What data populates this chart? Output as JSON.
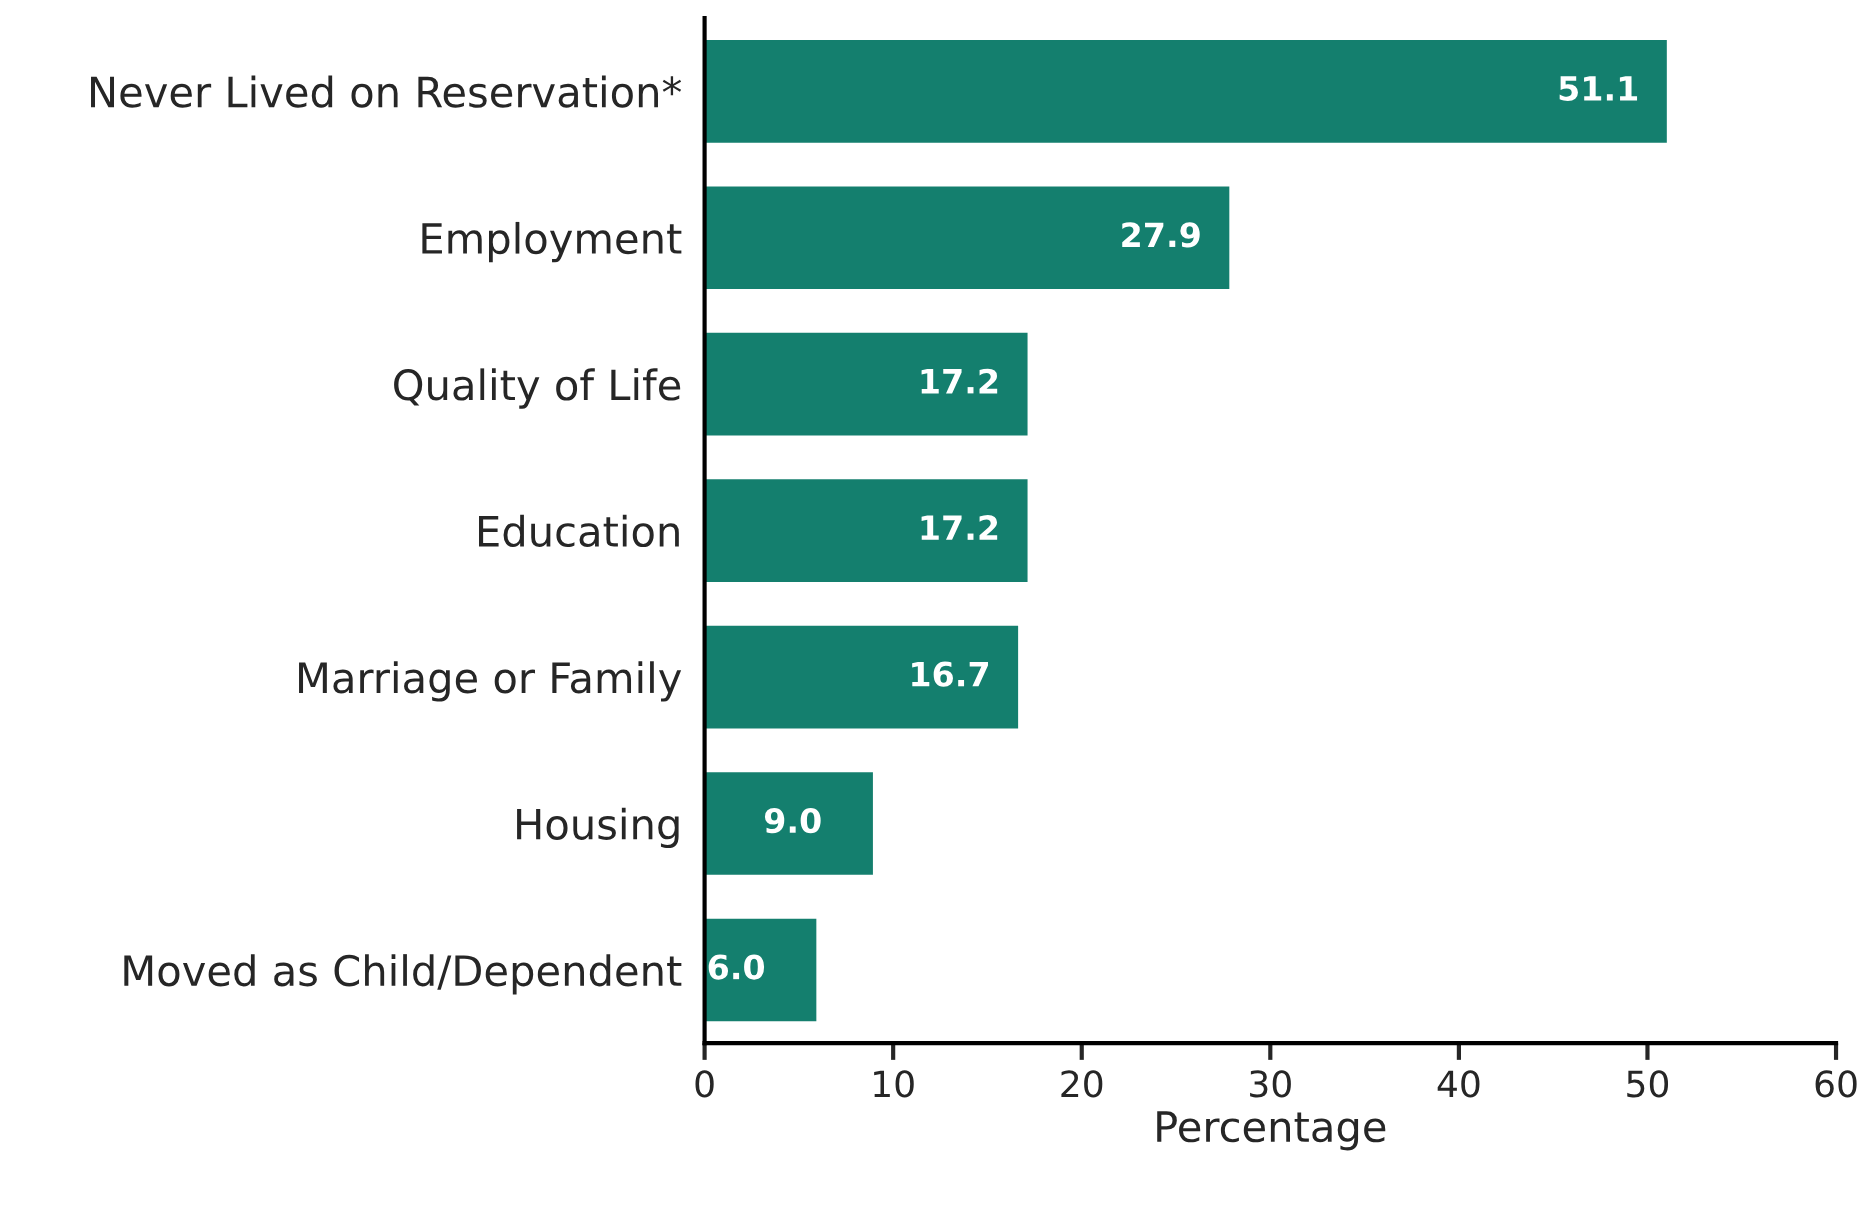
{
  "chart_data": {
    "type": "bar",
    "orientation": "horizontal",
    "xlabel": "Percentage",
    "categories": [
      "Never Lived on Reservation*",
      "Employment",
      "Quality of Life",
      "Education",
      "Marriage or Family",
      "Housing",
      "Moved as Child/Dependent"
    ],
    "values": [
      51.1,
      27.9,
      17.2,
      17.2,
      16.7,
      9.0,
      6.0
    ],
    "value_labels": [
      "51.1",
      "27.9",
      "17.2",
      "17.2",
      "16.7",
      "9.0",
      "6.0"
    ],
    "color": "#147f6e",
    "xlim": [
      0,
      60
    ],
    "xticks": [
      0,
      10,
      20,
      30,
      40,
      50,
      60
    ],
    "grid": false,
    "legend": false
  }
}
